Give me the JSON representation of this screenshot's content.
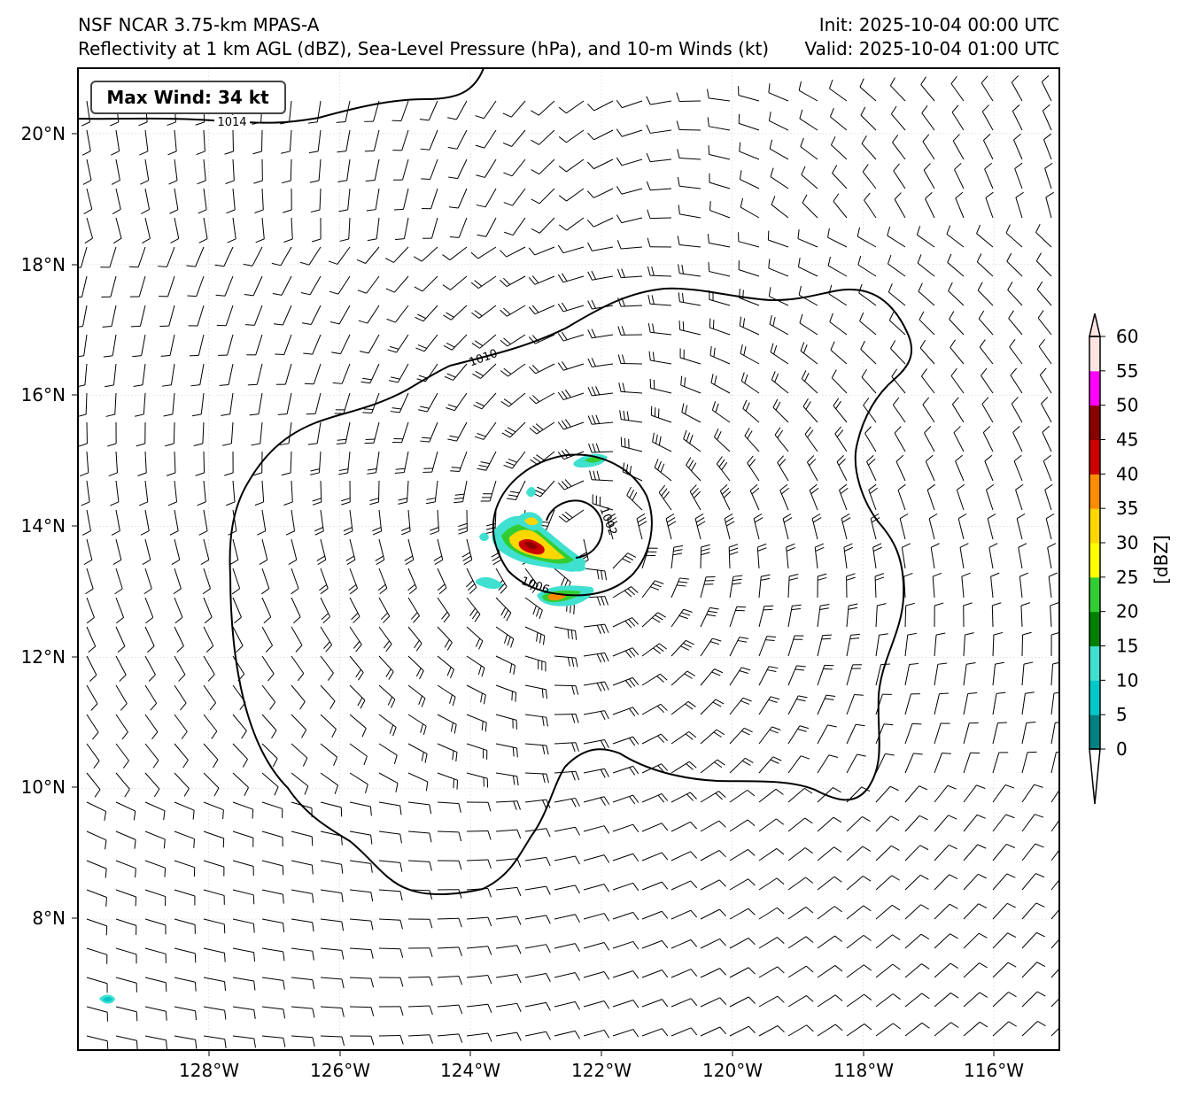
{
  "header": {
    "title_line1": "NSF NCAR 3.75-km MPAS-A",
    "title_line2": "Reflectivity at 1 km AGL (dBZ), Sea-Level Pressure (hPa), and 10-m Winds (kt)",
    "init": "Init: 2025-10-04 00:00 UTC",
    "valid": "Valid: 2025-10-04 01:00 UTC"
  },
  "max_wind_label": "Max Wind: 34 kt",
  "map": {
    "lon_ticks": [
      "128°W",
      "126°W",
      "124°W",
      "122°W",
      "120°W",
      "118°W",
      "116°W"
    ],
    "lat_ticks": [
      "20°N",
      "18°N",
      "16°N",
      "14°N",
      "12°N",
      "10°N",
      "8°N"
    ],
    "contour_labels": [
      "1014",
      "1010",
      "1006",
      "1002"
    ],
    "storm_center": {
      "lon": -122.1,
      "lat": 13.8
    }
  },
  "colorbar": {
    "label": "[dBZ]",
    "ticks": [
      "0",
      "5",
      "10",
      "15",
      "20",
      "25",
      "30",
      "35",
      "40",
      "45",
      "50",
      "55",
      "60"
    ],
    "colors": [
      "#008080",
      "#00c8c8",
      "#40e0d0",
      "#008000",
      "#32cd32",
      "#ffff00",
      "#ffd700",
      "#ff8c00",
      "#cc0000",
      "#8b0000",
      "#ff00ff",
      "#ffe4e1"
    ],
    "under_color": "#ffffff",
    "over_color": "#ffe4e1"
  }
}
